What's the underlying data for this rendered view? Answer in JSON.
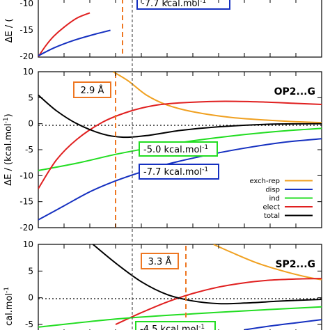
{
  "colors": {
    "exch_rep": "#f0a020",
    "disp": "#1530c0",
    "ind": "#22dd22",
    "elect": "#e02020",
    "total": "#000000",
    "marker": "#ee7722",
    "vline": "#555555"
  },
  "chart_data": [
    {
      "type": "line",
      "panel": "top",
      "tag": "",
      "ylim": [
        -20,
        10
      ],
      "yticks": [
        "-20",
        "-15",
        "-10"
      ],
      "ylabel": "ΔE / (",
      "annotations": [
        {
          "text": "-7.7 kcal.mol",
          "sup": "-1",
          "border": "#1530c0"
        }
      ],
      "series": [
        {
          "key": "elect",
          "x": [
            3.0,
            3.3,
            3.6,
            4.0,
            4.5,
            5.0
          ],
          "y": [
            -19.8,
            -15.5,
            -12.0,
            -8.5,
            -5.0,
            -3.0
          ]
        },
        {
          "key": "disp",
          "x": [
            3.0,
            3.6,
            4.4,
            5.2,
            5.8
          ],
          "y": [
            -19.5,
            -16.5,
            -13.5,
            -11.2,
            -9.7
          ]
        }
      ]
    },
    {
      "type": "line",
      "panel": "middle",
      "tag": "OP2...G",
      "ylim": [
        -20,
        10
      ],
      "yticks": [
        "10",
        "5",
        "0",
        "-5",
        "-10",
        "-15",
        "-20"
      ],
      "ylabel": "ΔE / (kcal.mol",
      "ylabel_sup": "-1",
      "ylabel_end": ")",
      "marker_label": "2.9 Å",
      "marker_x": 5.9,
      "min_x": 6.3,
      "annotations": [
        {
          "text": "-5.0 kcal.mol",
          "sup": "-1",
          "border": "#22dd22"
        },
        {
          "text": "-7.7 kcal.mol",
          "sup": "-1",
          "border": "#1530c0"
        }
      ],
      "legend": [
        "exch-rep",
        "disp",
        "ind",
        "elect",
        "total"
      ],
      "series": [
        {
          "key": "exch_rep",
          "x": [
            5.9,
            6.5,
            7.2,
            8.0,
            9.0,
            10.5,
            12.5,
            14.0
          ],
          "y": [
            10.0,
            8.2,
            5.5,
            3.6,
            2.3,
            1.2,
            0.5,
            0.2
          ]
        },
        {
          "key": "disp",
          "x": [
            3.0,
            4.0,
            5.0,
            6.0,
            7.0,
            8.0,
            9.5,
            11.0,
            12.5,
            14.0
          ],
          "y": [
            -18.5,
            -15.8,
            -13.1,
            -11.0,
            -9.3,
            -7.8,
            -6.1,
            -4.7,
            -3.6,
            -2.9
          ]
        },
        {
          "key": "ind",
          "x": [
            3.0,
            4.5,
            6.0,
            7.5,
            9.0,
            11.0,
            12.5,
            14.0
          ],
          "y": [
            -9.0,
            -7.6,
            -5.9,
            -4.5,
            -3.3,
            -2.1,
            -1.4,
            -0.9
          ]
        },
        {
          "key": "elect",
          "x": [
            3.0,
            3.7,
            4.5,
            5.5,
            6.5,
            7.5,
            8.5,
            10.0,
            11.5,
            13.0,
            14.0
          ],
          "y": [
            -12.5,
            -7.0,
            -3.0,
            0.3,
            2.3,
            3.5,
            4.0,
            4.3,
            4.2,
            3.9,
            3.7
          ]
        },
        {
          "key": "total",
          "x": [
            3.0,
            3.7,
            4.5,
            5.5,
            6.3,
            7.2,
            8.5,
            10.0,
            12.0,
            14.0
          ],
          "y": [
            5.5,
            2.5,
            0.0,
            -2.0,
            -2.6,
            -2.3,
            -1.3,
            -0.6,
            -0.1,
            0.0
          ]
        }
      ]
    },
    {
      "type": "line",
      "panel": "bottom",
      "tag": "SP2...G",
      "ylim": [
        -5,
        10
      ],
      "yticks": [
        "10",
        "5",
        "0",
        "-5"
      ],
      "ylabel": "cal.mol",
      "ylabel_sup": "-1",
      "marker_label": "3.3 Å",
      "marker_x": 9.8,
      "annotations": [
        {
          "text": "-4.5 kcal.mol",
          "sup": "-1",
          "border": "#22dd22"
        }
      ],
      "series": [
        {
          "key": "exch_rep",
          "x": [
            9.8,
            10.5,
            11.5,
            12.5,
            13.5,
            14.0
          ],
          "y": [
            10.0,
            8.5,
            6.5,
            5.0,
            3.8,
            3.4
          ]
        },
        {
          "key": "elect",
          "x": [
            6.0,
            7.0,
            8.0,
            9.0,
            10.0,
            11.0,
            12.0,
            13.0,
            14.0
          ],
          "y": [
            -5.0,
            -2.8,
            -0.8,
            0.8,
            2.0,
            2.8,
            3.3,
            3.5,
            3.6
          ]
        },
        {
          "key": "total",
          "x": [
            5.0,
            6.0,
            7.0,
            8.0,
            9.0,
            10.0,
            11.0,
            12.5,
            14.0
          ],
          "y": [
            10.5,
            6.5,
            3.0,
            0.6,
            -0.6,
            -1.1,
            -1.0,
            -0.6,
            -0.3
          ]
        },
        {
          "key": "ind",
          "x": [
            3.0,
            6.0,
            9.0,
            12.0,
            14.0
          ],
          "y": [
            -5.5,
            -4.0,
            -3.0,
            -2.2,
            -1.7
          ]
        },
        {
          "key": "disp",
          "x": [
            11.0,
            12.0,
            13.0,
            14.0
          ],
          "y": [
            -6.0,
            -5.3,
            -4.7,
            -4.1
          ]
        }
      ]
    }
  ]
}
